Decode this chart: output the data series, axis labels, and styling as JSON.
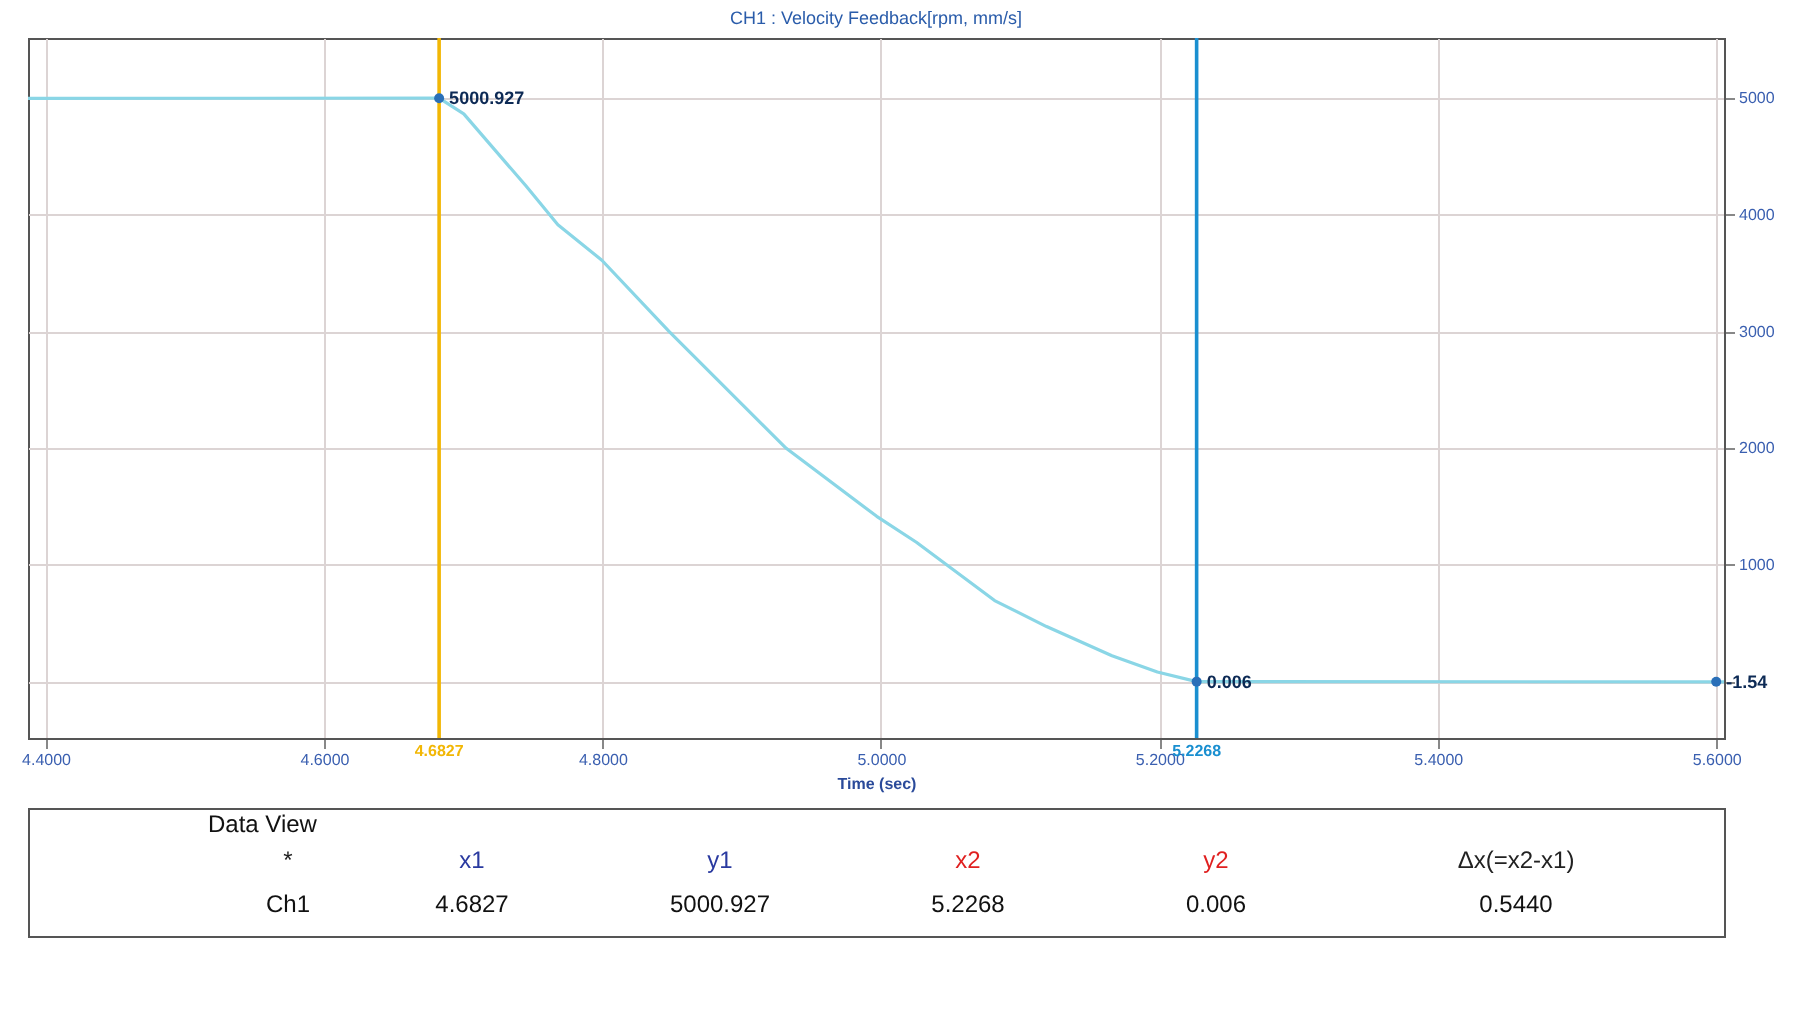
{
  "chart_data": {
    "type": "line",
    "title": "CH1 : Velocity Feedback[rpm, mm/s]",
    "xlabel": "Time (sec)",
    "xlim": [
      4.3874,
      5.6056
    ],
    "ylim": [
      -483,
      5517
    ],
    "xticks": [
      {
        "value": 4.4,
        "label": "4.4000"
      },
      {
        "value": 4.6,
        "label": "4.6000"
      },
      {
        "value": 4.8,
        "label": "4.8000"
      },
      {
        "value": 5.0,
        "label": "5.0000"
      },
      {
        "value": 5.2,
        "label": "5.2000"
      },
      {
        "value": 5.4,
        "label": "5.4000"
      },
      {
        "value": 5.6,
        "label": "5.6000"
      }
    ],
    "yticks": [
      {
        "value": 0,
        "label": null
      },
      1000,
      2000,
      3000,
      4000,
      5000
    ],
    "grid": true,
    "series": [
      {
        "color": "#8ad6e6",
        "x": [
          4.3874,
          4.6827,
          4.7004,
          4.745,
          4.768,
          4.7996,
          4.848,
          4.932,
          4.997,
          5.0255,
          5.0817,
          5.119,
          5.166,
          5.1986,
          5.2268,
          5.6056
        ],
        "values": [
          5000,
          5000.927,
          4867,
          4250,
          3917,
          3612,
          3000,
          2000,
          1417,
          1195,
          695,
          472,
          222,
          83,
          0.006,
          -1.54
        ]
      }
    ],
    "ref_lines": [
      {
        "axis": "x",
        "value": 4.6827,
        "label": "4.6827",
        "color": "#f2b705"
      },
      {
        "axis": "x",
        "value": 5.2268,
        "label": "5.2268",
        "color": "#1a8fd0"
      }
    ],
    "annotations": [
      {
        "text": "5000.927",
        "x": 4.6827,
        "y": 5000.927
      },
      {
        "text": "0.006",
        "x": 5.2268,
        "y": 0.006
      },
      {
        "text": "-1.54",
        "x": 5.6,
        "y": -1.54
      },
      "Data View",
      "*",
      "x1",
      "y1",
      "x2",
      "y2",
      "Δx(=x2-x1)",
      "Ch1",
      "4.6827",
      "5000.927",
      "5.2268",
      "0.006",
      "0.5440"
    ]
  }
}
